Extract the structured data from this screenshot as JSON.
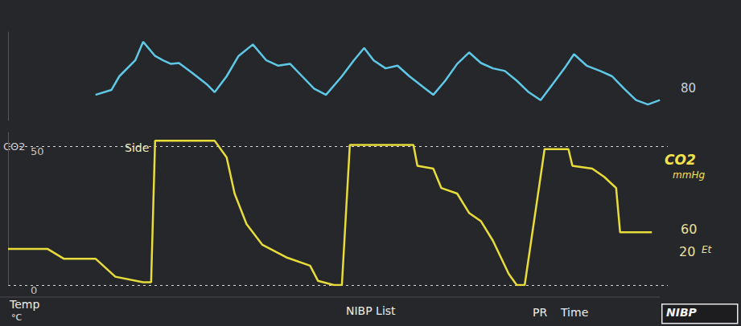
{
  "chart_data": [
    {
      "type": "line",
      "color": "#5ec8e6",
      "x": [
        110,
        130,
        140,
        160,
        170,
        185,
        195,
        205,
        215,
        230,
        250,
        260,
        275,
        290,
        308,
        325,
        340,
        355,
        370,
        385,
        400,
        420,
        435,
        448,
        460,
        475,
        490,
        505,
        525,
        535,
        550,
        565,
        580,
        595,
        610,
        625,
        640,
        655,
        670,
        685,
        700,
        712,
        728,
        745,
        760,
        775,
        790,
        805,
        820
      ],
      "values": [
        29,
        34.5,
        50,
        68,
        89,
        73,
        68,
        64,
        65,
        55,
        41,
        32,
        50,
        73,
        86,
        68,
        62,
        64,
        50,
        36,
        29,
        50,
        68,
        82,
        68,
        59,
        62,
        50,
        36,
        29,
        45,
        64,
        77,
        65,
        59,
        56,
        45,
        32,
        23,
        41,
        59,
        75,
        62,
        56,
        50,
        36,
        23,
        18,
        23
      ],
      "xlim": [
        0,
        830
      ],
      "ylim": [
        0,
        100
      ],
      "tick_labels": false,
      "annotations": [
        "80"
      ]
    },
    {
      "type": "line",
      "title": "CO2",
      "color": "#e8dc3a",
      "x": [
        0,
        50,
        70,
        110,
        135,
        170,
        180,
        185,
        260,
        275,
        285,
        300,
        320,
        350,
        380,
        390,
        410,
        420,
        430,
        510,
        515,
        535,
        545,
        565,
        580,
        595,
        610,
        630,
        640,
        650,
        675,
        705,
        710,
        735,
        750,
        765,
        770,
        810
      ],
      "values": [
        13,
        13,
        9.5,
        9.5,
        3,
        1,
        1,
        52,
        52,
        46,
        33,
        22,
        14.5,
        10,
        7,
        1.5,
        0,
        0,
        50.5,
        50.5,
        43,
        42,
        35,
        33,
        26,
        23,
        16,
        4,
        0,
        0,
        49,
        49,
        43,
        42,
        39,
        35,
        19,
        19
      ],
      "xlim": [
        0,
        830
      ],
      "ylim": [
        0,
        55
      ],
      "yticks": [
        0,
        50
      ],
      "grid": true,
      "annotations": [
        "Side",
        "CO2",
        "mmHg",
        "60",
        "20",
        "Et"
      ]
    }
  ],
  "screen": {
    "labels": [
      "Temp",
      "°C",
      "NIBP List",
      "PR",
      "Time"
    ],
    "button": "NIBP"
  }
}
